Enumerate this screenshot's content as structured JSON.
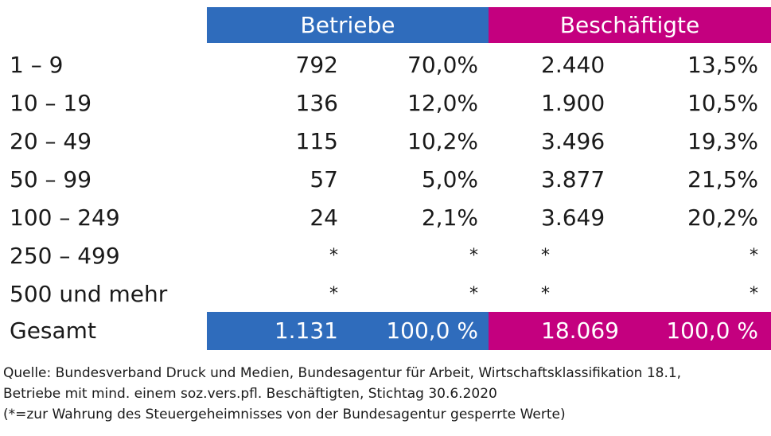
{
  "colors": {
    "betriebe": "#2f6cbc",
    "beschaeftigte": "#c4007f"
  },
  "header": {
    "betriebe": "Betriebe",
    "beschaeftigte": "Beschäftigte"
  },
  "rows": [
    {
      "label": "1 – 9",
      "betriebe_n": "792",
      "betriebe_pct": "70,0%",
      "beschaeftigte_n": "2.440",
      "beschaeftigte_pct": "13,5%"
    },
    {
      "label": "10 – 19",
      "betriebe_n": "136",
      "betriebe_pct": "12,0%",
      "beschaeftigte_n": "1.900",
      "beschaeftigte_pct": "10,5%"
    },
    {
      "label": "20 – 49",
      "betriebe_n": "115",
      "betriebe_pct": "10,2%",
      "beschaeftigte_n": "3.496",
      "beschaeftigte_pct": "19,3%"
    },
    {
      "label": "50 – 99",
      "betriebe_n": "57",
      "betriebe_pct": "5,0%",
      "beschaeftigte_n": "3.877",
      "beschaeftigte_pct": "21,5%"
    },
    {
      "label": "100 – 249",
      "betriebe_n": "24",
      "betriebe_pct": "2,1%",
      "beschaeftigte_n": "3.649",
      "beschaeftigte_pct": "20,2%"
    },
    {
      "label": "250 – 499",
      "betriebe_n": "*",
      "betriebe_pct": "*",
      "beschaeftigte_n": "*",
      "beschaeftigte_pct": "*"
    },
    {
      "label": "500 und mehr",
      "betriebe_n": "*",
      "betriebe_pct": "*",
      "beschaeftigte_n": "*",
      "beschaeftigte_pct": "*"
    }
  ],
  "total": {
    "label": "Gesamt",
    "betriebe_n": "1.131",
    "betriebe_pct": "100,0 %",
    "beschaeftigte_n": "18.069",
    "beschaeftigte_pct": "100,0 %"
  },
  "footnote": {
    "line1": "Quelle: Bundesverband Druck und Medien, Bundesagentur für Arbeit, Wirtschaftsklassifikation 18.1,",
    "line2": "Betriebe mit mind. einem soz.vers.pfl. Beschäftigten, Stichtag 30.6.2020",
    "line3": "(*=zur Wahrung des Steuergeheimnisses von der Bundesagentur gesperrte Werte)"
  }
}
